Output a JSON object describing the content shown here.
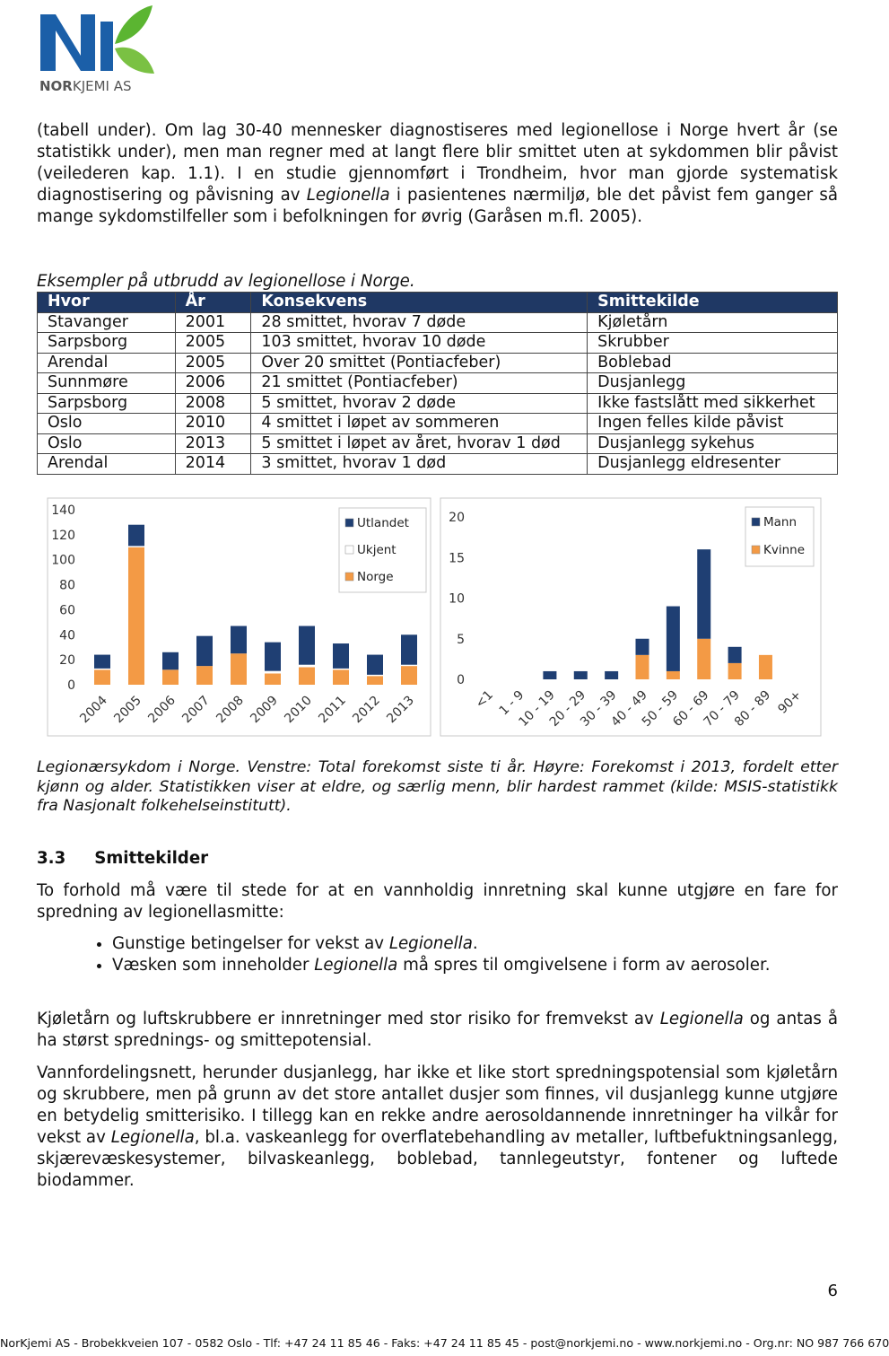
{
  "logo": [
    "NOR",
    "KJEMI AS"
  ],
  "intro": [
    "(tabell under). Om lag 30-40 mennesker diagnostiseres med legionellose i Norge hvert år (se statistikk under), men man regner med at langt flere blir smittet uten at sykdommen blir påvist (veilederen kap. 1.1). I en studie gjennomført i Trondheim, hvor man gjorde systematisk diagnostisering og påvisning av ",
    "Legionella",
    " i pasientenes nærmiljø, ble det påvist fem ganger så mange sykdomstilfeller som i befolkningen for øvrig (Garåsen m.fl. 2005)."
  ],
  "table": {
    "caption": "Eksempler på utbrudd av legionellose i Norge.",
    "header": [
      "Hvor",
      "År",
      "Konsekvens",
      "Smittekilde"
    ],
    "rows": [
      [
        "Stavanger",
        2001,
        "28 smittet, hvorav 7 døde",
        "Kjøletårn"
      ],
      [
        "Sarpsborg",
        2005,
        "103 smittet, hvorav 10 døde",
        "Skrubber"
      ],
      [
        "Arendal",
        2005,
        "Over 20 smittet (Pontiacfeber)",
        "Boblebad"
      ],
      [
        "Sunnmøre",
        2006,
        "21 smittet (Pontiacfeber)",
        "Dusjanlegg"
      ],
      [
        "Sarpsborg",
        2008,
        "5 smittet, hvorav 2 døde",
        "Ikke fastslått med sikkerhet"
      ],
      [
        "Oslo",
        2010,
        "4 smittet i løpet av sommeren",
        "Ingen felles kilde påvist"
      ],
      [
        "Oslo",
        2013,
        "5 smittet i løpet av året, hvorav 1 død",
        "Dusjanlegg sykehus"
      ],
      [
        "Arendal",
        2014,
        "3 smittet, hvorav 1 død",
        "Dusjanlegg eldresenter"
      ]
    ]
  },
  "chart_data": [
    {
      "type": "bar",
      "stacked": true,
      "categories": [
        "2004",
        "2005",
        "2006",
        "2007",
        "2008",
        "2009",
        "2010",
        "2011",
        "2012",
        "2013"
      ],
      "series": [
        {
          "name": "Norge",
          "color": "#f39a45",
          "values": [
            12,
            110,
            12,
            15,
            25,
            9,
            14,
            12,
            7,
            15
          ]
        },
        {
          "name": "Ukjent",
          "color": "#ffffff",
          "values": [
            1,
            1,
            0,
            0,
            0,
            2,
            2,
            1,
            1,
            1
          ]
        },
        {
          "name": "Utlandet",
          "color": "#1f3f73",
          "values": [
            11,
            17,
            14,
            24,
            22,
            23,
            31,
            20,
            16,
            24
          ]
        }
      ],
      "ylim": [
        0,
        140
      ],
      "yticks": [
        0,
        20,
        40,
        60,
        80,
        100,
        120,
        140
      ],
      "legend": "upper right"
    },
    {
      "type": "bar",
      "stacked": true,
      "categories": [
        "<1",
        "1 - 9",
        "10 - 19",
        "20 - 29",
        "30 - 39",
        "40 - 49",
        "50 - 59",
        "60 - 69",
        "70 - 79",
        "80 - 89",
        "90+"
      ],
      "series": [
        {
          "name": "Kvinne",
          "color": "#f39a45",
          "values": [
            0,
            0,
            0,
            0,
            0,
            3,
            1,
            5,
            2,
            3,
            0
          ]
        },
        {
          "name": "Mann",
          "color": "#1f3f73",
          "values": [
            0,
            0,
            1,
            1,
            1,
            2,
            8,
            11,
            2,
            0,
            0
          ]
        }
      ],
      "ylim": [
        0,
        20
      ],
      "yticks": [
        0,
        5,
        10,
        15,
        20
      ],
      "legend": "upper right"
    }
  ],
  "figure_caption": "Legionærsykdom i Norge. Venstre: Total forekomst siste ti år. Høyre: Forekomst i 2013, fordelt etter kjønn og alder. Statistikken viser at eldre, og særlig menn, blir hardest rammet (kilde: MSIS-statistikk fra Nasjonalt folkehelseinstitutt).",
  "section": {
    "number": "3.3",
    "title": "Smittekilder"
  },
  "para1": "To forhold må være til stede for at en vannholdig innretning skal kunne utgjøre en fare for spredning av legionellasmitte:",
  "bullets": [
    [
      "Gunstige betingelser for vekst av ",
      "Legionella",
      "."
    ],
    [
      "Væsken som inneholder ",
      "Legionella",
      " må spres til omgivelsene i form av aerosoler."
    ]
  ],
  "para2": [
    "Kjøletårn og luftskrubbere er innretninger med stor risiko for fremvekst av ",
    "Legionella",
    " og antas å ha størst sprednings- og smittepotensial."
  ],
  "para3": [
    "Vannfordelingsnett, herunder dusjanlegg, har ikke et like stort spredningspotensial som kjøletårn og skrubbere, men på grunn av det store antallet dusjer som finnes, vil dusjanlegg kunne utgjøre en betydelig smitterisiko. I tillegg kan en rekke andre aerosoldannende innretninger ha vilkår for vekst av ",
    "Legionella",
    ", bl.a. vaskeanlegg for overflatebehandling av metaller, luftbefuktningsanlegg, skjærevæskesystemer, bilvaskeanlegg, boblebad, tannlegeutstyr, fontener og luftede biodammer."
  ],
  "page_number": 6,
  "footer": "NorKjemi AS - Brobekkveien 107 - 0582 Oslo - Tlf: +47 24 11 85 46 - Faks: +47 24 11 85 45 - post@norkjemi.no - www.norkjemi.no - Org.nr: NO 987 766 670"
}
